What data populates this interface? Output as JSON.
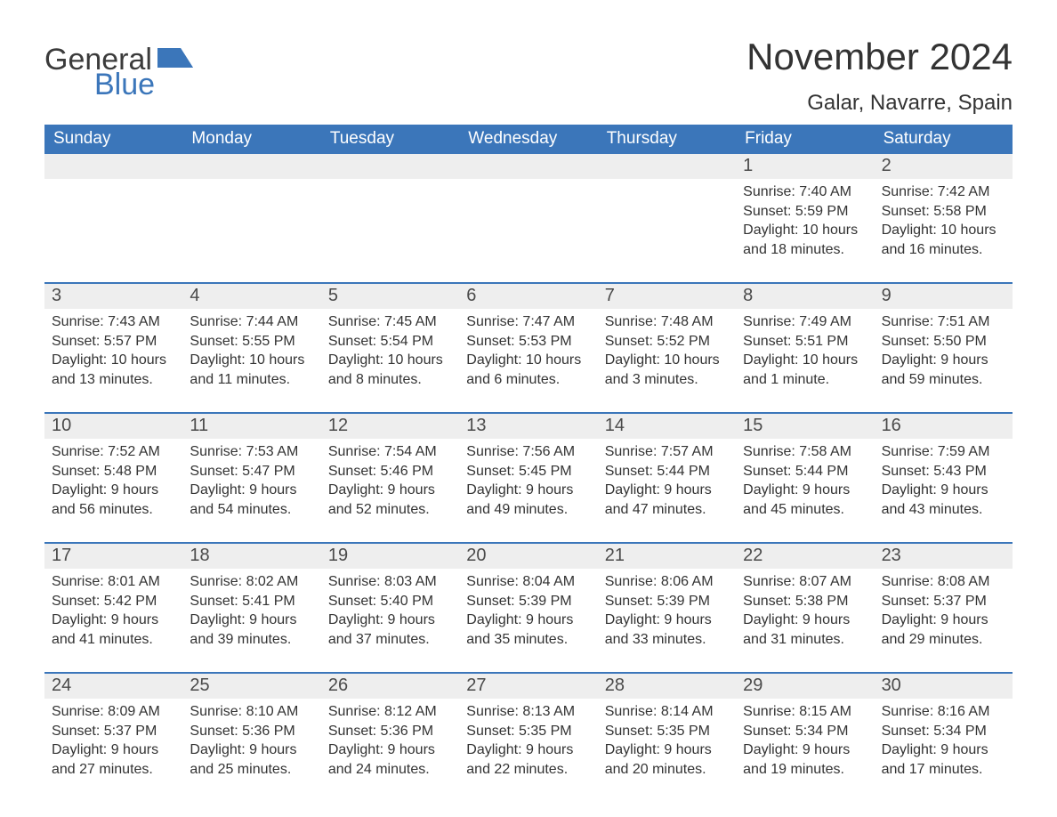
{
  "brand": {
    "part1": "General",
    "part2": "Blue",
    "flag_color": "#3b76ba"
  },
  "title": "November 2024",
  "location": "Galar, Navarre, Spain",
  "colors": {
    "header_bg": "#3b76ba",
    "row_gray": "#eeeeee",
    "rule": "#3b76ba",
    "text": "#333333",
    "bg": "#ffffff"
  },
  "typography": {
    "title_fontsize": 42,
    "location_fontsize": 24,
    "dow_fontsize": 19,
    "daynum_fontsize": 20,
    "body_fontsize": 16,
    "font_family": "Arial"
  },
  "days_of_week": [
    "Sunday",
    "Monday",
    "Tuesday",
    "Wednesday",
    "Thursday",
    "Friday",
    "Saturday"
  ],
  "weeks": [
    [
      {
        "n": "",
        "sunrise": "",
        "sunset": "",
        "daylight": ""
      },
      {
        "n": "",
        "sunrise": "",
        "sunset": "",
        "daylight": ""
      },
      {
        "n": "",
        "sunrise": "",
        "sunset": "",
        "daylight": ""
      },
      {
        "n": "",
        "sunrise": "",
        "sunset": "",
        "daylight": ""
      },
      {
        "n": "",
        "sunrise": "",
        "sunset": "",
        "daylight": ""
      },
      {
        "n": "1",
        "sunrise": "Sunrise: 7:40 AM",
        "sunset": "Sunset: 5:59 PM",
        "daylight": "Daylight: 10 hours and 18 minutes."
      },
      {
        "n": "2",
        "sunrise": "Sunrise: 7:42 AM",
        "sunset": "Sunset: 5:58 PM",
        "daylight": "Daylight: 10 hours and 16 minutes."
      }
    ],
    [
      {
        "n": "3",
        "sunrise": "Sunrise: 7:43 AM",
        "sunset": "Sunset: 5:57 PM",
        "daylight": "Daylight: 10 hours and 13 minutes."
      },
      {
        "n": "4",
        "sunrise": "Sunrise: 7:44 AM",
        "sunset": "Sunset: 5:55 PM",
        "daylight": "Daylight: 10 hours and 11 minutes."
      },
      {
        "n": "5",
        "sunrise": "Sunrise: 7:45 AM",
        "sunset": "Sunset: 5:54 PM",
        "daylight": "Daylight: 10 hours and 8 minutes."
      },
      {
        "n": "6",
        "sunrise": "Sunrise: 7:47 AM",
        "sunset": "Sunset: 5:53 PM",
        "daylight": "Daylight: 10 hours and 6 minutes."
      },
      {
        "n": "7",
        "sunrise": "Sunrise: 7:48 AM",
        "sunset": "Sunset: 5:52 PM",
        "daylight": "Daylight: 10 hours and 3 minutes."
      },
      {
        "n": "8",
        "sunrise": "Sunrise: 7:49 AM",
        "sunset": "Sunset: 5:51 PM",
        "daylight": "Daylight: 10 hours and 1 minute."
      },
      {
        "n": "9",
        "sunrise": "Sunrise: 7:51 AM",
        "sunset": "Sunset: 5:50 PM",
        "daylight": "Daylight: 9 hours and 59 minutes."
      }
    ],
    [
      {
        "n": "10",
        "sunrise": "Sunrise: 7:52 AM",
        "sunset": "Sunset: 5:48 PM",
        "daylight": "Daylight: 9 hours and 56 minutes."
      },
      {
        "n": "11",
        "sunrise": "Sunrise: 7:53 AM",
        "sunset": "Sunset: 5:47 PM",
        "daylight": "Daylight: 9 hours and 54 minutes."
      },
      {
        "n": "12",
        "sunrise": "Sunrise: 7:54 AM",
        "sunset": "Sunset: 5:46 PM",
        "daylight": "Daylight: 9 hours and 52 minutes."
      },
      {
        "n": "13",
        "sunrise": "Sunrise: 7:56 AM",
        "sunset": "Sunset: 5:45 PM",
        "daylight": "Daylight: 9 hours and 49 minutes."
      },
      {
        "n": "14",
        "sunrise": "Sunrise: 7:57 AM",
        "sunset": "Sunset: 5:44 PM",
        "daylight": "Daylight: 9 hours and 47 minutes."
      },
      {
        "n": "15",
        "sunrise": "Sunrise: 7:58 AM",
        "sunset": "Sunset: 5:44 PM",
        "daylight": "Daylight: 9 hours and 45 minutes."
      },
      {
        "n": "16",
        "sunrise": "Sunrise: 7:59 AM",
        "sunset": "Sunset: 5:43 PM",
        "daylight": "Daylight: 9 hours and 43 minutes."
      }
    ],
    [
      {
        "n": "17",
        "sunrise": "Sunrise: 8:01 AM",
        "sunset": "Sunset: 5:42 PM",
        "daylight": "Daylight: 9 hours and 41 minutes."
      },
      {
        "n": "18",
        "sunrise": "Sunrise: 8:02 AM",
        "sunset": "Sunset: 5:41 PM",
        "daylight": "Daylight: 9 hours and 39 minutes."
      },
      {
        "n": "19",
        "sunrise": "Sunrise: 8:03 AM",
        "sunset": "Sunset: 5:40 PM",
        "daylight": "Daylight: 9 hours and 37 minutes."
      },
      {
        "n": "20",
        "sunrise": "Sunrise: 8:04 AM",
        "sunset": "Sunset: 5:39 PM",
        "daylight": "Daylight: 9 hours and 35 minutes."
      },
      {
        "n": "21",
        "sunrise": "Sunrise: 8:06 AM",
        "sunset": "Sunset: 5:39 PM",
        "daylight": "Daylight: 9 hours and 33 minutes."
      },
      {
        "n": "22",
        "sunrise": "Sunrise: 8:07 AM",
        "sunset": "Sunset: 5:38 PM",
        "daylight": "Daylight: 9 hours and 31 minutes."
      },
      {
        "n": "23",
        "sunrise": "Sunrise: 8:08 AM",
        "sunset": "Sunset: 5:37 PM",
        "daylight": "Daylight: 9 hours and 29 minutes."
      }
    ],
    [
      {
        "n": "24",
        "sunrise": "Sunrise: 8:09 AM",
        "sunset": "Sunset: 5:37 PM",
        "daylight": "Daylight: 9 hours and 27 minutes."
      },
      {
        "n": "25",
        "sunrise": "Sunrise: 8:10 AM",
        "sunset": "Sunset: 5:36 PM",
        "daylight": "Daylight: 9 hours and 25 minutes."
      },
      {
        "n": "26",
        "sunrise": "Sunrise: 8:12 AM",
        "sunset": "Sunset: 5:36 PM",
        "daylight": "Daylight: 9 hours and 24 minutes."
      },
      {
        "n": "27",
        "sunrise": "Sunrise: 8:13 AM",
        "sunset": "Sunset: 5:35 PM",
        "daylight": "Daylight: 9 hours and 22 minutes."
      },
      {
        "n": "28",
        "sunrise": "Sunrise: 8:14 AM",
        "sunset": "Sunset: 5:35 PM",
        "daylight": "Daylight: 9 hours and 20 minutes."
      },
      {
        "n": "29",
        "sunrise": "Sunrise: 8:15 AM",
        "sunset": "Sunset: 5:34 PM",
        "daylight": "Daylight: 9 hours and 19 minutes."
      },
      {
        "n": "30",
        "sunrise": "Sunrise: 8:16 AM",
        "sunset": "Sunset: 5:34 PM",
        "daylight": "Daylight: 9 hours and 17 minutes."
      }
    ]
  ]
}
